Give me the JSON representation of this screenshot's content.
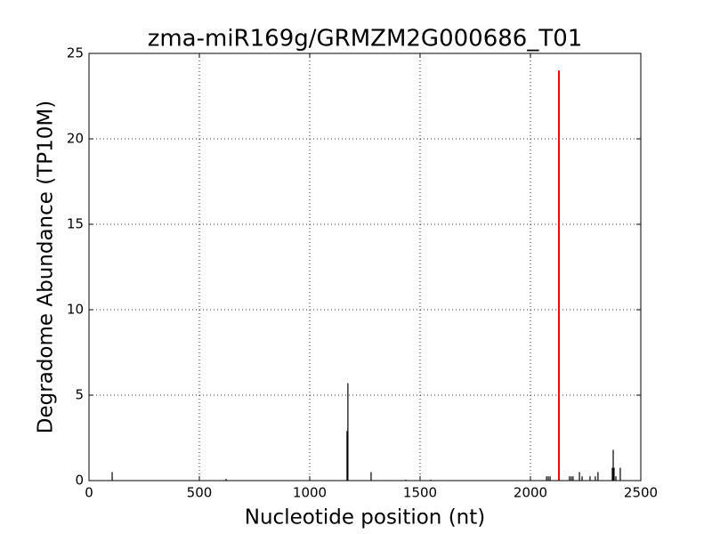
{
  "chart_data": {
    "type": "stem",
    "title": "zma-miR169g/GRMZM2G000686_T01",
    "xlabel": "Nucleotide position (nt)",
    "ylabel": "Degradome Abundance (TP10M)",
    "series": [
      {
        "color": "#000000",
        "x": [
          105,
          621,
          1169,
          1173,
          1278,
          1435,
          1548,
          2073,
          2081,
          2089,
          2177,
          2185,
          2193,
          2222,
          2234,
          2270,
          2294,
          2306,
          2371,
          2375,
          2379,
          2387,
          2407
        ],
        "values": [
          0.5,
          0.1,
          2.9,
          5.7,
          0.5,
          0.05,
          0.05,
          0.25,
          0.25,
          0.25,
          0.25,
          0.25,
          0.25,
          0.5,
          0.25,
          0.25,
          0.25,
          0.5,
          0.75,
          1.8,
          0.75,
          0.25,
          0.75
        ]
      },
      {
        "color": "#ff0000",
        "x": [
          2129
        ],
        "values": [
          24
        ]
      }
    ],
    "xlim": [
      0,
      2500
    ],
    "xticks": [
      0,
      500,
      1000,
      1500,
      2000,
      2500
    ],
    "ylim": [
      0,
      25
    ],
    "yticks": [
      0,
      5,
      10,
      15,
      20,
      25
    ],
    "grid": true
  }
}
